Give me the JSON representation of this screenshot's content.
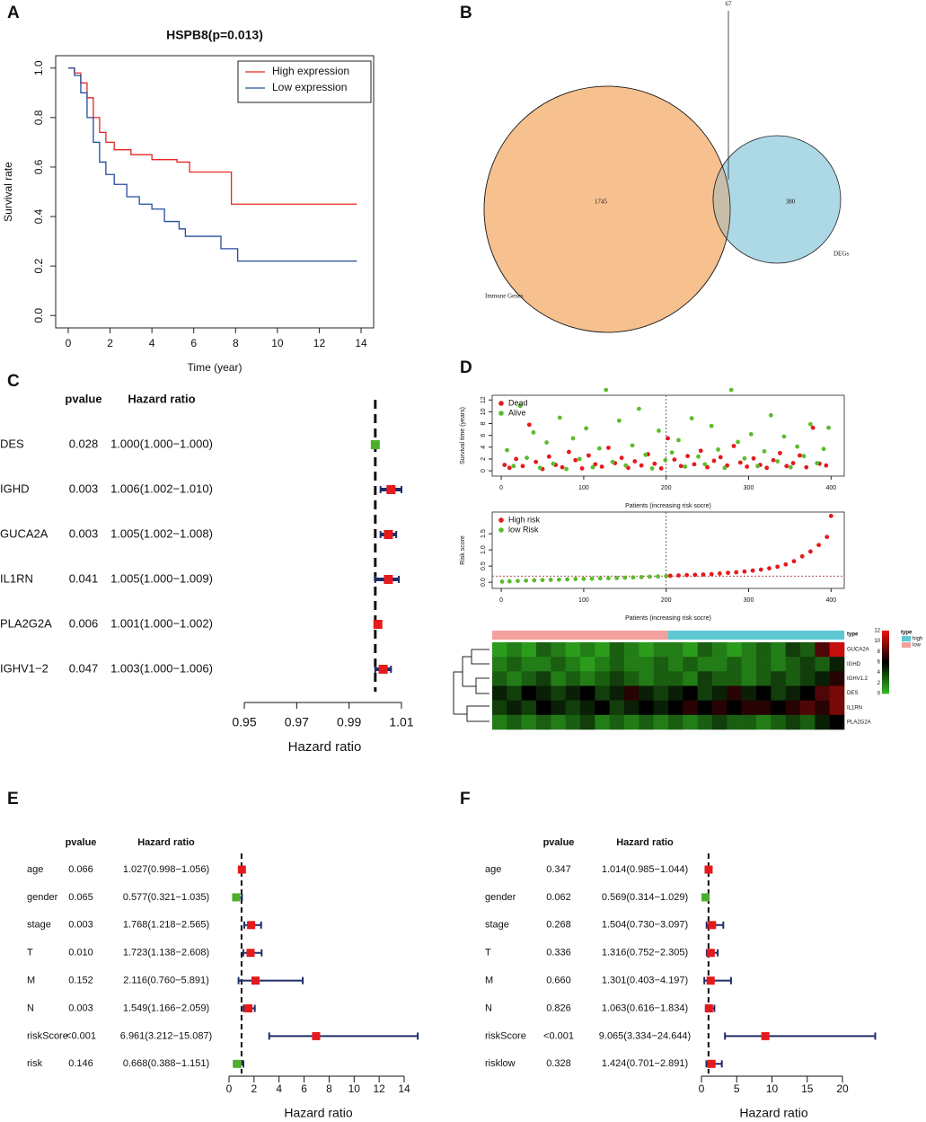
{
  "chart_data": [
    {
      "type": "km",
      "panel": "A",
      "title": "HSPB8(p=0.013)",
      "xlabel": "Time (year)",
      "ylabel": "Survival rate",
      "xlim": [
        -0.6,
        14.6
      ],
      "xticks": [
        0,
        2,
        4,
        6,
        8,
        10,
        12,
        14
      ],
      "ylim": [
        -0.05,
        1.05
      ],
      "yticks": [
        {
          "value": 0,
          "label": "0.0"
        },
        0.2,
        0.4,
        0.6,
        0.8,
        {
          "value": 1,
          "label": "1.0"
        }
      ],
      "legend": "topright",
      "series": [
        {
          "name": "High expression",
          "color": "#e8261f",
          "x": [
            0,
            0.3,
            0.6,
            0.9,
            1.2,
            1.5,
            1.8,
            2.2,
            3,
            4,
            5.2,
            5.8,
            7.8,
            13.8
          ],
          "values": [
            1,
            0.98,
            0.94,
            0.88,
            0.8,
            0.74,
            0.7,
            0.67,
            0.65,
            0.63,
            0.62,
            0.58,
            0.45,
            0.45
          ]
        },
        {
          "name": "Low expression",
          "color": "#244c9c",
          "x": [
            0,
            0.3,
            0.6,
            0.9,
            1.2,
            1.5,
            1.8,
            2.2,
            2.8,
            3.4,
            4,
            4.6,
            5.3,
            5.6,
            7.3,
            8.1,
            13.8
          ],
          "values": [
            1,
            0.97,
            0.9,
            0.8,
            0.7,
            0.62,
            0.57,
            0.53,
            0.48,
            0.45,
            0.43,
            0.38,
            0.35,
            0.32,
            0.27,
            0.22,
            0.22
          ]
        }
      ]
    },
    {
      "type": "venn",
      "panel": "B",
      "sets": [
        {
          "name": "Immune Genes",
          "count": 1745,
          "color": "#f7c08f"
        },
        {
          "name": "DEGs",
          "count": 380,
          "color": "#add8e6"
        }
      ],
      "intersection": 67,
      "overlap_color": "#c8bda8"
    },
    {
      "type": "forest",
      "panel": "C",
      "columns": [
        "pvalue",
        "Hazard ratio"
      ],
      "categories": [
        "DES",
        "IGHD",
        "GUCA2A",
        "IL1RN",
        "PLA2G2A",
        "IGHV1−2"
      ],
      "pvalues": [
        "0.028",
        "0.003",
        "0.003",
        "0.041",
        "0.006",
        "0.047"
      ],
      "values": [
        1.0,
        1.006,
        1.005,
        1.005,
        1.001,
        1.003
      ],
      "lower": [
        1.0,
        1.002,
        1.002,
        1.0,
        1.0,
        1.0
      ],
      "upper": [
        1.0,
        1.01,
        1.008,
        1.009,
        1.002,
        1.006
      ],
      "value_labels": [
        "1.000(1.000−1.000)",
        "1.006(1.002−1.010)",
        "1.005(1.002−1.008)",
        "1.005(1.000−1.009)",
        "1.001(1.000−1.002)",
        "1.003(1.000−1.006)"
      ],
      "colors": [
        "#4daf2a",
        "#e41a1c",
        "#e41a1c",
        "#e41a1c",
        "#e41a1c",
        "#e41a1c"
      ],
      "ci_color": "#1f2d6b",
      "reference": 1,
      "xlim": [
        0.95,
        1.01
      ],
      "xticks": [
        0.95,
        0.97,
        0.99,
        1.01
      ],
      "xlabel": "Hazard ratio"
    },
    {
      "type": "scatter",
      "panel": "D",
      "xlabel": "Patients (increasing risk socre)",
      "ylabel": "Survival time (years)",
      "xlim": [
        -11,
        416
      ],
      "xticks": [
        0,
        100,
        200,
        300,
        400
      ],
      "ylim": [
        -0.9,
        12.8
      ],
      "yticks": [
        0,
        2,
        4,
        6,
        8,
        10,
        12
      ],
      "cutoff": 200,
      "legend": "topleft",
      "series": [
        {
          "name": "Dead",
          "color": "#e41a1c",
          "x": [
            4,
            10,
            18,
            26,
            34,
            42,
            50,
            58,
            66,
            74,
            82,
            90,
            98,
            106,
            114,
            122,
            130,
            138,
            146,
            154,
            162,
            170,
            178,
            186,
            194,
            202,
            210,
            218,
            226,
            234,
            242,
            250,
            258,
            266,
            274,
            282,
            290,
            298,
            306,
            314,
            322,
            330,
            338,
            346,
            354,
            362,
            370,
            378,
            386,
            394
          ],
          "values": [
            1,
            0.5,
            2,
            0.8,
            7.8,
            1.5,
            0.3,
            2.4,
            1,
            0.6,
            3.2,
            1.8,
            0.4,
            2.6,
            1.1,
            0.7,
            3.9,
            1.3,
            2.2,
            0.5,
            1.6,
            0.9,
            2.8,
            1.2,
            0.4,
            5.5,
            1.9,
            0.8,
            2.5,
            1.1,
            3.4,
            0.6,
            1.7,
            2.3,
            0.9,
            4.2,
            1.4,
            0.7,
            2.1,
            1,
            0.5,
            1.8,
            3,
            0.8,
            1.3,
            2.6,
            0.6,
            7.3,
            1.2,
            0.9
          ]
        },
        {
          "name": "Alive",
          "color": "#5dbb2e",
          "x": [
            7,
            15,
            23,
            31,
            39,
            47,
            55,
            63,
            71,
            79,
            87,
            95,
            103,
            111,
            119,
            127,
            135,
            143,
            151,
            159,
            167,
            175,
            183,
            191,
            199,
            207,
            215,
            223,
            231,
            239,
            247,
            255,
            263,
            271,
            279,
            287,
            295,
            303,
            311,
            319,
            327,
            335,
            343,
            351,
            359,
            367,
            375,
            383,
            391,
            397
          ],
          "values": [
            3.5,
            0.8,
            11,
            2.2,
            6.5,
            0.5,
            4.8,
            1.2,
            9,
            0.3,
            5.5,
            2,
            7.2,
            0.6,
            3.8,
            13.7,
            1.5,
            8.5,
            0.9,
            4.3,
            10.5,
            2.7,
            0.4,
            6.8,
            1.8,
            3.1,
            5.2,
            0.7,
            8.9,
            2.4,
            1.1,
            7.6,
            3.6,
            0.5,
            13.7,
            4.9,
            2.1,
            6.2,
            0.8,
            3.3,
            9.4,
            1.6,
            5.8,
            0.6,
            4.1,
            2.5,
            7.9,
            1.3,
            3.7,
            7.3
          ]
        }
      ]
    },
    {
      "type": "scatter",
      "xlabel": "Patients (increasing risk socre)",
      "ylabel": "Risk score",
      "xlim": [
        -11,
        416
      ],
      "xticks": [
        0,
        100,
        200,
        300,
        400
      ],
      "ylim": [
        -0.19,
        2.17
      ],
      "yticks": [
        {
          "value": 0,
          "label": "0.0"
        },
        0.5,
        {
          "value": 1,
          "label": "1.0"
        },
        1.5
      ],
      "cutoff": 200,
      "threshold": 0.19,
      "legend": "topleft",
      "series": [
        {
          "name": "High risk",
          "color": "#e41a1c",
          "x": [
            205,
            215,
            225,
            235,
            245,
            255,
            265,
            275,
            285,
            295,
            305,
            315,
            325,
            335,
            345,
            355,
            365,
            375,
            385,
            395,
            400
          ],
          "values": [
            0.2,
            0.21,
            0.22,
            0.23,
            0.24,
            0.25,
            0.27,
            0.29,
            0.31,
            0.33,
            0.36,
            0.39,
            0.43,
            0.48,
            0.55,
            0.65,
            0.8,
            0.95,
            1.15,
            1.4,
            2.05
          ]
        },
        {
          "name": "low Risk",
          "color": "#5dbb2e",
          "x": [
            1,
            10,
            20,
            30,
            40,
            50,
            60,
            70,
            80,
            90,
            100,
            110,
            120,
            130,
            140,
            150,
            160,
            170,
            180,
            190,
            200
          ],
          "values": [
            0.02,
            0.03,
            0.04,
            0.05,
            0.06,
            0.07,
            0.075,
            0.08,
            0.09,
            0.1,
            0.105,
            0.11,
            0.12,
            0.125,
            0.13,
            0.14,
            0.15,
            0.16,
            0.17,
            0.18,
            0.19
          ]
        }
      ]
    },
    {
      "type": "heatmap",
      "legend_title": "type",
      "groups": [
        {
          "name": "high",
          "color": "#5cc9d2",
          "count": 12
        },
        {
          "name": "low",
          "color": "#f4a09c",
          "count": 12
        }
      ],
      "rows": [
        "GUCA2A",
        "IGHD",
        "IGHV1.2",
        "DES",
        "IL1RN",
        "PLA2G2A"
      ],
      "values": [
        [
          1,
          2,
          1,
          3,
          2,
          1,
          2,
          1,
          3,
          2,
          1,
          2,
          2,
          1,
          3,
          2,
          1,
          2,
          3,
          2,
          4,
          3,
          8,
          11
        ],
        [
          2,
          3,
          2,
          2,
          3,
          2,
          1,
          2,
          3,
          2,
          2,
          3,
          2,
          3,
          2,
          2,
          3,
          2,
          3,
          2,
          3,
          4,
          3,
          5
        ],
        [
          3,
          2,
          3,
          4,
          2,
          3,
          2,
          3,
          4,
          3,
          2,
          3,
          3,
          2,
          4,
          3,
          3,
          2,
          3,
          4,
          3,
          4,
          5,
          7
        ],
        [
          5,
          4,
          6,
          5,
          4,
          5,
          6,
          4,
          5,
          7,
          5,
          4,
          5,
          6,
          4,
          5,
          7,
          5,
          6,
          4,
          5,
          6,
          8,
          9
        ],
        [
          4,
          5,
          4,
          6,
          5,
          4,
          5,
          6,
          4,
          5,
          6,
          5,
          6,
          7,
          6,
          7,
          6,
          7,
          7,
          6,
          7,
          8,
          7,
          9
        ],
        [
          2,
          3,
          2,
          3,
          2,
          3,
          4,
          2,
          3,
          2,
          3,
          2,
          3,
          2,
          3,
          4,
          3,
          3,
          2,
          3,
          4,
          3,
          5,
          6
        ]
      ],
      "zlim": [
        0,
        12
      ],
      "zticks": [
        0,
        2,
        4,
        6,
        8,
        10,
        12
      ],
      "colormap": [
        "#33bb22",
        "#000000",
        "#ee1111"
      ]
    },
    {
      "type": "forest",
      "panel": "E",
      "columns": [
        "pvalue",
        "Hazard ratio"
      ],
      "categories": [
        "age",
        "gender",
        "stage",
        "T",
        "M",
        "N",
        "riskScore",
        "risk"
      ],
      "pvalues": [
        "0.066",
        "0.065",
        "0.003",
        "0.010",
        "0.152",
        "0.003",
        "<0.001",
        "0.146"
      ],
      "values": [
        1.027,
        0.577,
        1.768,
        1.723,
        2.116,
        1.549,
        6.961,
        0.668
      ],
      "lower": [
        0.998,
        0.321,
        1.218,
        1.138,
        0.76,
        1.166,
        3.212,
        0.388
      ],
      "upper": [
        1.056,
        1.035,
        2.565,
        2.608,
        5.891,
        2.059,
        15.087,
        1.151
      ],
      "value_labels": [
        "1.027(0.998−1.056)",
        "0.577(0.321−1.035)",
        "1.768(1.218−2.565)",
        "1.723(1.138−2.608)",
        "2.116(0.760−5.891)",
        "1.549(1.166−2.059)",
        "6.961(3.212−15.087)",
        "0.668(0.388−1.151)"
      ],
      "colors": [
        "#e41a1c",
        "#4daf2a",
        "#e41a1c",
        "#e41a1c",
        "#e41a1c",
        "#e41a1c",
        "#e41a1c",
        "#4daf2a"
      ],
      "ci_color": "#1f2d6b",
      "reference": 1,
      "xlim": [
        0,
        14
      ],
      "xticks": [
        0,
        2,
        4,
        6,
        8,
        10,
        12,
        14
      ],
      "xlabel": "Hazard ratio"
    },
    {
      "type": "forest",
      "panel": "F",
      "columns": [
        "pvalue",
        "Hazard ratio"
      ],
      "categories": [
        "age",
        "gender",
        "stage",
        "T",
        "M",
        "N",
        "riskScore",
        "risklow"
      ],
      "pvalues": [
        "0.347",
        "0.062",
        "0.268",
        "0.336",
        "0.660",
        "0.826",
        "<0.001",
        "0.328"
      ],
      "values": [
        1.014,
        0.569,
        1.504,
        1.316,
        1.301,
        1.063,
        9.065,
        1.424
      ],
      "lower": [
        0.985,
        0.314,
        0.73,
        0.752,
        0.403,
        0.616,
        3.334,
        0.701
      ],
      "upper": [
        1.044,
        1.029,
        3.097,
        2.305,
        4.197,
        1.834,
        24.644,
        2.891
      ],
      "value_labels": [
        "1.014(0.985−1.044)",
        "0.569(0.314−1.029)",
        "1.504(0.730−3.097)",
        "1.316(0.752−2.305)",
        "1.301(0.403−4.197)",
        "1.063(0.616−1.834)",
        "9.065(3.334−24.644)",
        "1.424(0.701−2.891)"
      ],
      "colors": [
        "#e41a1c",
        "#4daf2a",
        "#e41a1c",
        "#e41a1c",
        "#e41a1c",
        "#e41a1c",
        "#e41a1c",
        "#e41a1c"
      ],
      "ci_color": "#1f2d6b",
      "reference": 1,
      "xlim": [
        0,
        20
      ],
      "xticks": [
        0,
        5,
        10,
        15,
        20
      ],
      "xlabel": "Hazard ratio"
    }
  ]
}
